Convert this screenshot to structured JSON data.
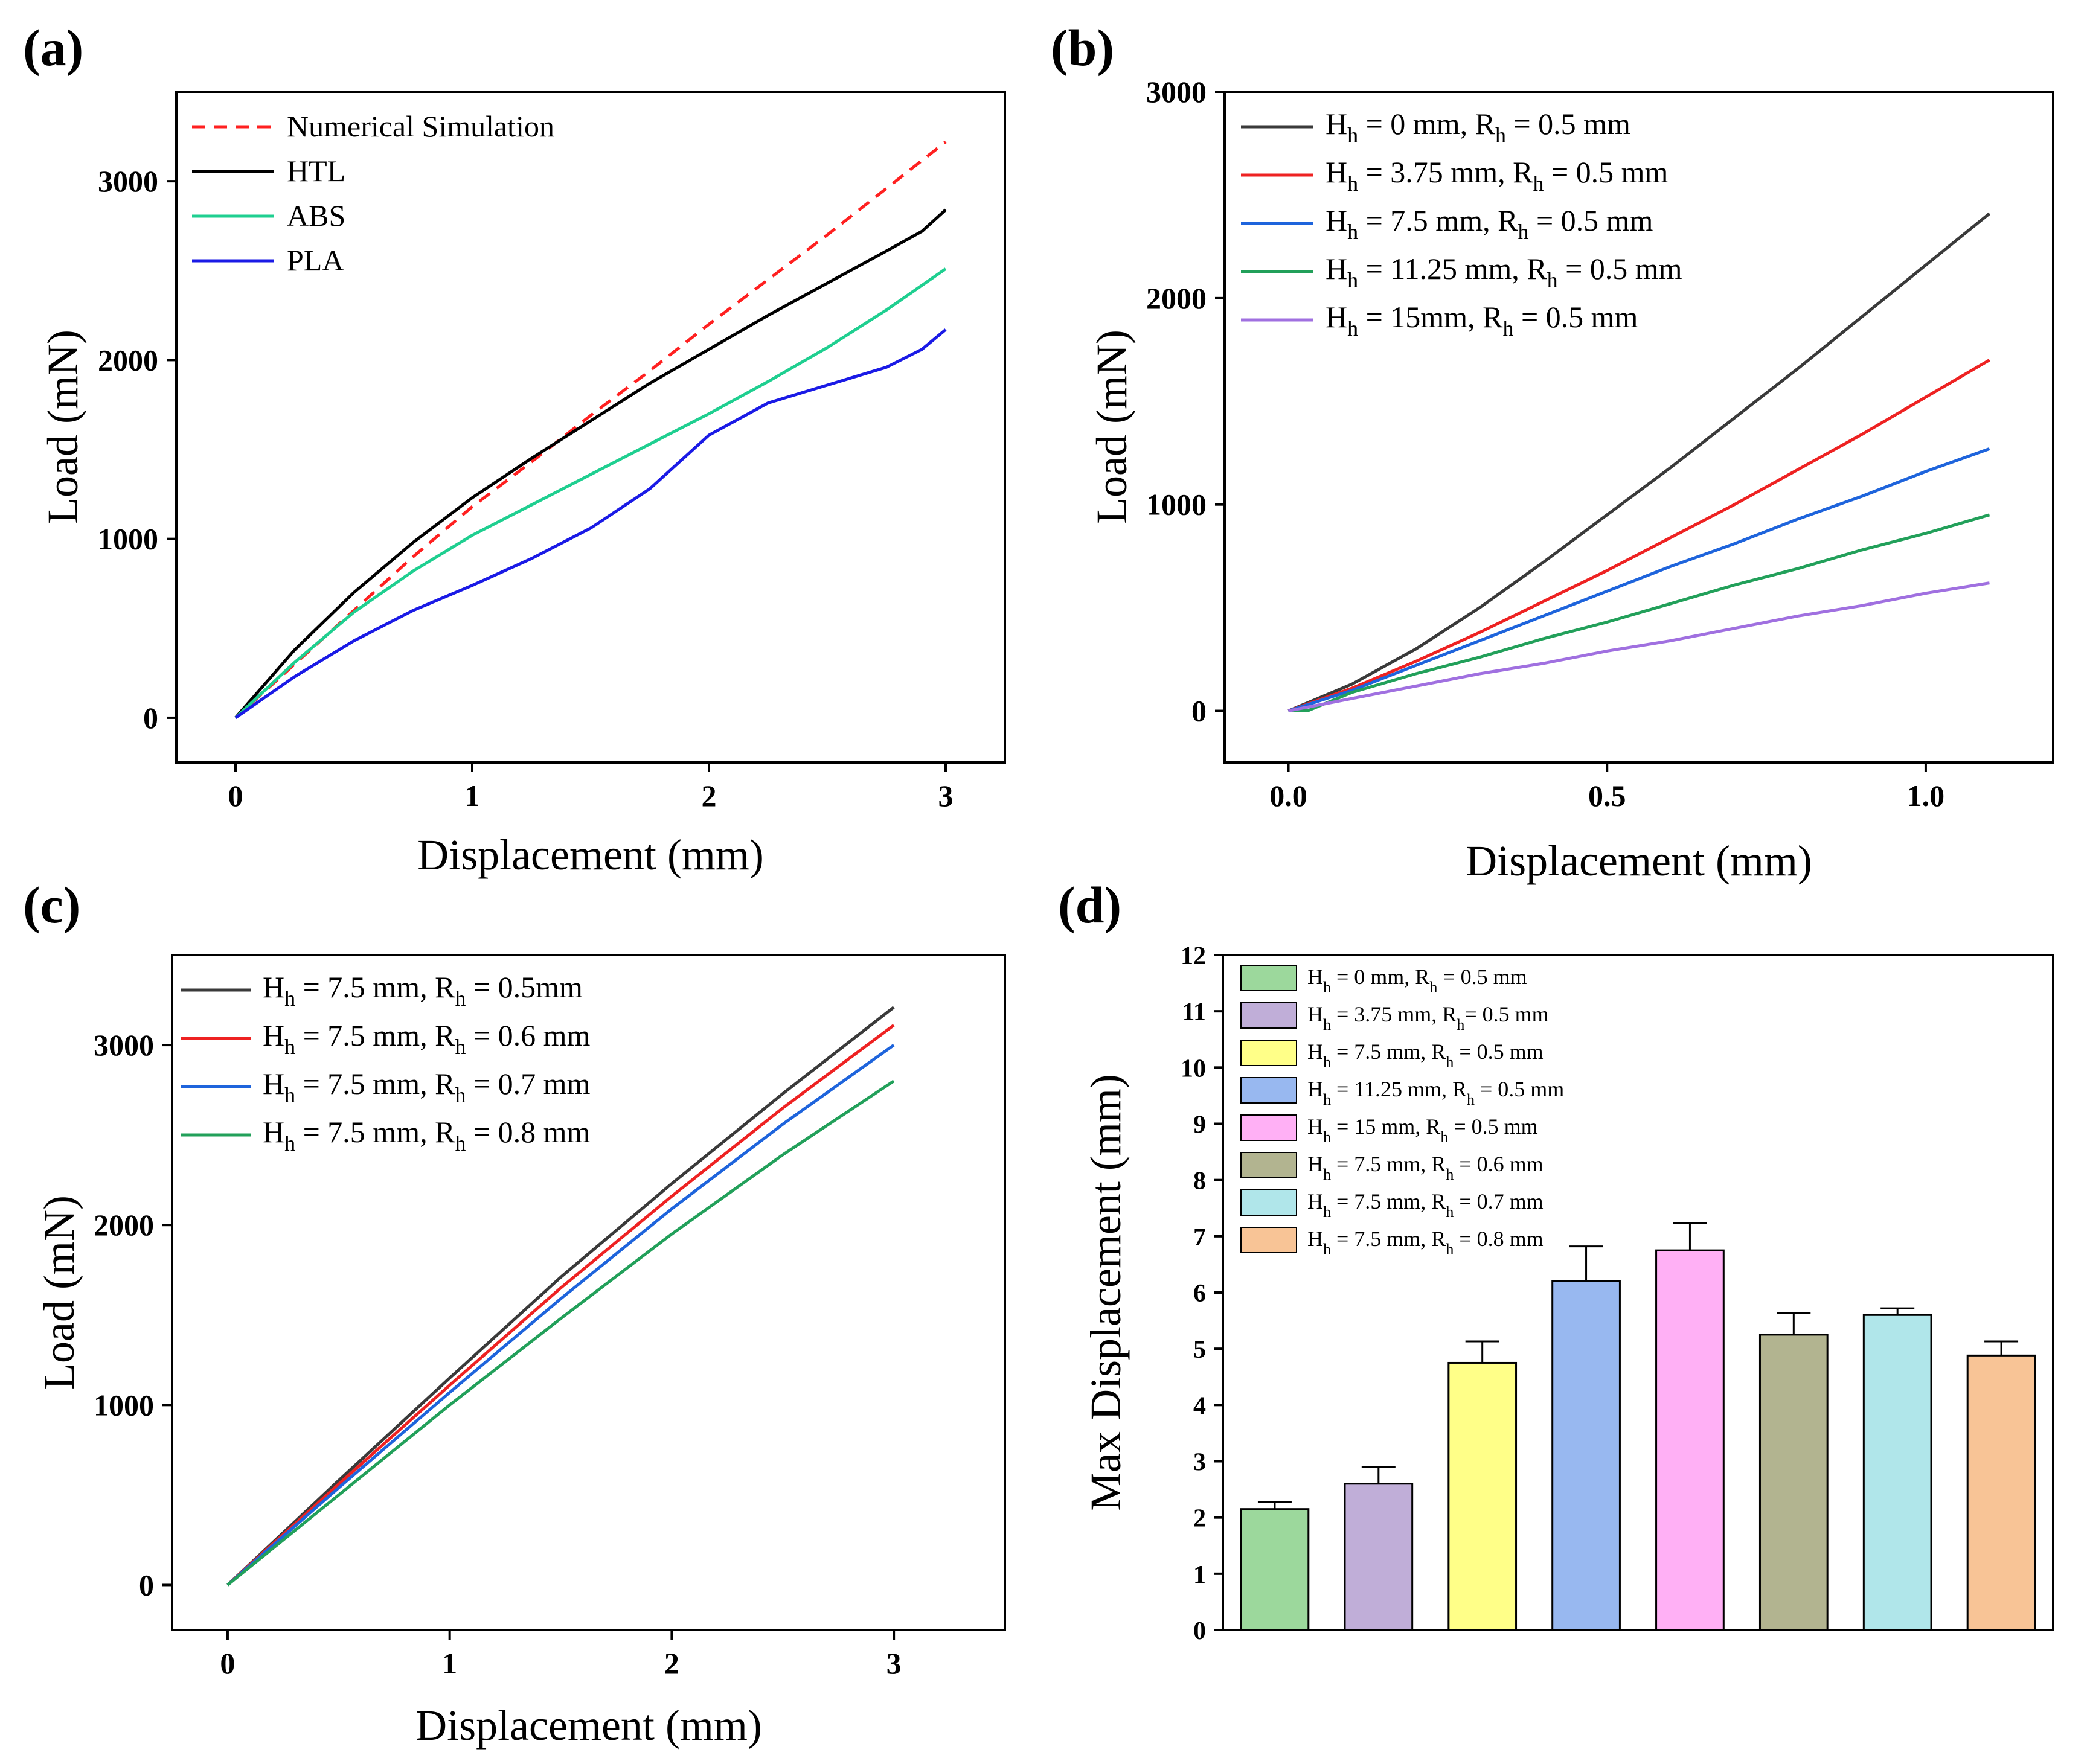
{
  "chart_data": [
    {
      "panel": "(a)",
      "type": "line",
      "xlabel": "Displacement (mm)",
      "ylabel": "Load (mN)",
      "xlim": [
        -0.25,
        3.25
      ],
      "ylim": [
        -250,
        3500
      ],
      "xticks": [
        {
          "v": 0,
          "label": "0"
        },
        {
          "v": 1,
          "label": "1"
        },
        {
          "v": 2,
          "label": "2"
        },
        {
          "v": 3,
          "label": "3"
        }
      ],
      "yticks": [
        {
          "v": 0,
          "label": "0"
        },
        {
          "v": 1000,
          "label": "1000"
        },
        {
          "v": 2000,
          "label": "2000"
        },
        {
          "v": 3000,
          "label": "3000"
        }
      ],
      "legend_position": "top-left",
      "series": [
        {
          "name": "Numerical Simulation",
          "color": "#ff2020",
          "dashed": true,
          "x": [
            0,
            0.25,
            0.5,
            0.75,
            1.0,
            1.25,
            1.5,
            1.75,
            2.0,
            2.25,
            2.5,
            2.75,
            3.0
          ],
          "y": [
            0,
            300,
            600,
            900,
            1180,
            1430,
            1690,
            1940,
            2200,
            2450,
            2700,
            2960,
            3220
          ]
        },
        {
          "name": "HTL",
          "color": "#000000",
          "dashed": false,
          "x": [
            0,
            0.25,
            0.5,
            0.75,
            1.0,
            1.25,
            1.5,
            1.75,
            2.0,
            2.25,
            2.5,
            2.75,
            2.9,
            3.0
          ],
          "y": [
            0,
            380,
            700,
            980,
            1230,
            1450,
            1660,
            1870,
            2060,
            2250,
            2430,
            2610,
            2720,
            2840
          ]
        },
        {
          "name": "ABS",
          "color": "#1fcf90",
          "dashed": false,
          "x": [
            0,
            0.25,
            0.5,
            0.75,
            1.0,
            1.25,
            1.5,
            1.75,
            2.0,
            2.25,
            2.5,
            2.75,
            3.0
          ],
          "y": [
            0,
            310,
            590,
            820,
            1020,
            1190,
            1360,
            1530,
            1700,
            1880,
            2070,
            2280,
            2510
          ]
        },
        {
          "name": "PLA",
          "color": "#1a1ae6",
          "dashed": false,
          "x": [
            0,
            0.25,
            0.5,
            0.75,
            1.0,
            1.25,
            1.5,
            1.75,
            2.0,
            2.25,
            2.5,
            2.75,
            2.9,
            3.0
          ],
          "y": [
            0,
            230,
            430,
            600,
            740,
            890,
            1060,
            1280,
            1580,
            1760,
            1860,
            1960,
            2060,
            2170
          ]
        }
      ]
    },
    {
      "panel": "(b)",
      "type": "line",
      "xlabel": "Displacement (mm)",
      "ylabel": "Load (mN)",
      "xlim": [
        -0.1,
        1.2
      ],
      "ylim": [
        -250,
        3000
      ],
      "xticks": [
        {
          "v": 0,
          "label": "0.0"
        },
        {
          "v": 0.5,
          "label": "0.5"
        },
        {
          "v": 1.0,
          "label": "1.0"
        }
      ],
      "yticks": [
        {
          "v": 0,
          "label": "0"
        },
        {
          "v": 1000,
          "label": "1000"
        },
        {
          "v": 2000,
          "label": "2000"
        },
        {
          "v": 3000,
          "label": "3000"
        }
      ],
      "legend_position": "top-left",
      "series": [
        {
          "name": "Hh = 0 mm, Rh = 0.5 mm",
          "legend": {
            "a": "H",
            "as": "h",
            "b": " = 0 mm, R",
            "bs": "h",
            "c": " = 0.5 mm"
          },
          "color": "#3a3a3a",
          "x": [
            0,
            0.1,
            0.2,
            0.3,
            0.4,
            0.5,
            0.6,
            0.7,
            0.8,
            0.9,
            1.0,
            1.1
          ],
          "y": [
            0,
            130,
            300,
            500,
            720,
            950,
            1180,
            1420,
            1660,
            1910,
            2160,
            2410
          ]
        },
        {
          "name": "Hh = 3.75 mm, Rh = 0.5 mm",
          "legend": {
            "a": "H",
            "as": "h",
            "b": " = 3.75 mm, R",
            "bs": "h",
            "c": " = 0.5 mm"
          },
          "color": "#ee2222",
          "x": [
            0,
            0.1,
            0.2,
            0.3,
            0.4,
            0.5,
            0.6,
            0.7,
            0.8,
            0.9,
            1.0,
            1.1
          ],
          "y": [
            0,
            110,
            240,
            380,
            530,
            680,
            840,
            1000,
            1170,
            1340,
            1520,
            1700
          ]
        },
        {
          "name": "Hh = 7.5 mm, Rh = 0.5 mm",
          "legend": {
            "a": "H",
            "as": "h",
            "b": " = 7.5 mm, R",
            "bs": "h",
            "c": " = 0.5 mm"
          },
          "color": "#1e64dc",
          "x": [
            0,
            0.1,
            0.2,
            0.3,
            0.4,
            0.5,
            0.6,
            0.7,
            0.8,
            0.9,
            1.0,
            1.1
          ],
          "y": [
            0,
            100,
            220,
            340,
            460,
            580,
            700,
            810,
            930,
            1040,
            1160,
            1270
          ]
        },
        {
          "name": "Hh = 11.25 mm, Rh = 0.5 mm",
          "legend": {
            "a": "H",
            "as": "h",
            "b": " = 11.25 mm, R",
            "bs": "h",
            "c": " = 0.5 mm"
          },
          "color": "#22a05a",
          "x": [
            0,
            0.03,
            0.1,
            0.2,
            0.3,
            0.4,
            0.5,
            0.6,
            0.7,
            0.8,
            0.9,
            1.0,
            1.1
          ],
          "y": [
            0,
            0,
            90,
            180,
            260,
            350,
            430,
            520,
            610,
            690,
            780,
            860,
            950
          ]
        },
        {
          "name": "Hh = 15mm, Rh = 0.5 mm",
          "legend": {
            "a": "H",
            "as": "h",
            "b": " = 15mm, R",
            "bs": "h",
            "c": " = 0.5 mm"
          },
          "color": "#a070e0",
          "x": [
            0,
            0.1,
            0.2,
            0.3,
            0.4,
            0.5,
            0.6,
            0.7,
            0.8,
            0.9,
            1.0,
            1.1
          ],
          "y": [
            0,
            60,
            120,
            180,
            230,
            290,
            340,
            400,
            460,
            510,
            570,
            620
          ]
        }
      ]
    },
    {
      "panel": "(c)",
      "type": "line",
      "xlabel": "Displacement (mm)",
      "ylabel": "Load (mN)",
      "xlim": [
        -0.25,
        3.5
      ],
      "ylim": [
        -250,
        3500
      ],
      "xticks": [
        {
          "v": 0,
          "label": "0"
        },
        {
          "v": 1,
          "label": "1"
        },
        {
          "v": 2,
          "label": "2"
        },
        {
          "v": 3,
          "label": "3"
        }
      ],
      "yticks": [
        {
          "v": 0,
          "label": "0"
        },
        {
          "v": 1000,
          "label": "1000"
        },
        {
          "v": 2000,
          "label": "2000"
        },
        {
          "v": 3000,
          "label": "3000"
        }
      ],
      "legend_position": "top-left",
      "series": [
        {
          "name": "Hh = 7.5 mm, Rh = 0.5mm",
          "legend": {
            "a": "H",
            "as": "h",
            "b": " = 7.5 mm, R",
            "bs": "h",
            "c": " = 0.5mm"
          },
          "color": "#3a3a3a",
          "x": [
            0,
            0.5,
            1.0,
            1.5,
            2.0,
            2.5,
            3.0
          ],
          "y": [
            0,
            580,
            1150,
            1710,
            2230,
            2730,
            3210
          ]
        },
        {
          "name": "Hh = 7.5 mm, Rh = 0.6 mm",
          "legend": {
            "a": "H",
            "as": "h",
            "b": " = 7.5 mm, R",
            "bs": "h",
            "c": " = 0.6 mm"
          },
          "color": "#ee2222",
          "x": [
            0,
            0.5,
            1.0,
            1.5,
            2.0,
            2.5,
            3.0
          ],
          "y": [
            0,
            560,
            1110,
            1650,
            2160,
            2650,
            3110
          ]
        },
        {
          "name": "Hh = 7.5 mm, Rh = 0.7 mm",
          "legend": {
            "a": "H",
            "as": "h",
            "b": " = 7.5 mm, R",
            "bs": "h",
            "c": " = 0.7 mm"
          },
          "color": "#1e64dc",
          "x": [
            0,
            0.5,
            1.0,
            1.5,
            2.0,
            2.5,
            3.0
          ],
          "y": [
            0,
            540,
            1070,
            1590,
            2090,
            2560,
            3000
          ]
        },
        {
          "name": "Hh = 7.5 mm, Rh = 0.8 mm",
          "legend": {
            "a": "H",
            "as": "h",
            "b": " = 7.5 mm, R",
            "bs": "h",
            "c": " = 0.8 mm"
          },
          "color": "#22a05a",
          "x": [
            0,
            0.5,
            1.0,
            1.5,
            2.0,
            2.5,
            3.0
          ],
          "y": [
            0,
            500,
            1000,
            1480,
            1950,
            2390,
            2800
          ]
        }
      ]
    },
    {
      "panel": "(d)",
      "type": "bar",
      "ylabel": "Max Displacement (mm)",
      "ylim": [
        0,
        12
      ],
      "yticks": [
        0,
        1,
        2,
        3,
        4,
        5,
        6,
        7,
        8,
        9,
        10,
        11,
        12
      ],
      "legend_position": "top-left",
      "bars": [
        {
          "name": "Hh = 0 mm, Rh = 0.5 mm",
          "legend": {
            "a": "H",
            "as": "h",
            "b": " = 0 mm, R",
            "bs": "h",
            "c": " = 0.5 mm"
          },
          "value": 2.15,
          "error": 0.12,
          "color": "#9cd89c"
        },
        {
          "name": "Hh = 3.75 mm, Rh= 0.5 mm",
          "legend": {
            "a": "H",
            "as": "h",
            "b": " = 3.75 mm, R",
            "bs": "h",
            "c": "= 0.5 mm"
          },
          "value": 2.6,
          "error": 0.3,
          "color": "#c0aed8"
        },
        {
          "name": "Hh = 7.5 mm, Rh = 0.5 mm",
          "legend": {
            "a": "H",
            "as": "h",
            "b": " = 7.5 mm, R",
            "bs": "h",
            "c": " = 0.5 mm"
          },
          "value": 4.75,
          "error": 0.38,
          "color": "#ffff88"
        },
        {
          "name": "Hh = 11.25 mm, Rh = 0.5 mm",
          "legend": {
            "a": "H",
            "as": "h",
            "b": " = 11.25 mm, R",
            "bs": "h",
            "c": " = 0.5 mm"
          },
          "value": 6.2,
          "error": 0.62,
          "color": "#98b8f0"
        },
        {
          "name": "Hh = 15 mm, Rh = 0.5 mm",
          "legend": {
            "a": "H",
            "as": "h",
            "b": " = 15 mm, R",
            "bs": "h",
            "c": " = 0.5 mm"
          },
          "value": 6.75,
          "error": 0.48,
          "color": "#ffb0f5"
        },
        {
          "name": "Hh = 7.5 mm, Rh = 0.6 mm",
          "legend": {
            "a": "H",
            "as": "h",
            "b": " = 7.5 mm, R",
            "bs": "h",
            "c": " = 0.6 mm"
          },
          "value": 5.25,
          "error": 0.38,
          "color": "#b2b490"
        },
        {
          "name": "Hh = 7.5 mm, Rh = 0.7 mm",
          "legend": {
            "a": "H",
            "as": "h",
            "b": " = 7.5 mm, R",
            "bs": "h",
            "c": " = 0.7 mm"
          },
          "value": 5.6,
          "error": 0.12,
          "color": "#b0e6ea"
        },
        {
          "name": "Hh = 7.5 mm, Rh = 0.8 mm",
          "legend": {
            "a": "H",
            "as": "h",
            "b": " = 7.5 mm, R",
            "bs": "h",
            "c": " = 0.8 mm"
          },
          "value": 4.88,
          "error": 0.25,
          "color": "#f8c496"
        }
      ]
    }
  ]
}
